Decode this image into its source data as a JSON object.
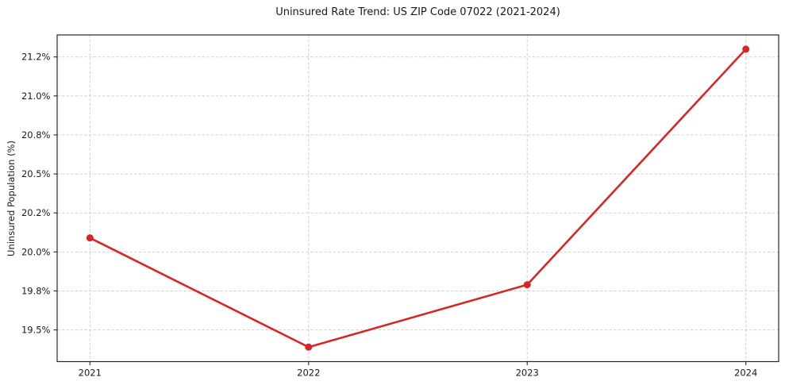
{
  "chart_data": {
    "type": "line",
    "title": "Uninsured Rate Trend: US ZIP Code 07022 (2021-2024)",
    "xlabel": "",
    "ylabel": "Uninsured Population (%)",
    "x": [
      2021,
      2022,
      2023,
      2024
    ],
    "series": [
      {
        "name": "Uninsured rate",
        "values": [
          20.09,
          19.39,
          19.79,
          21.3
        ]
      }
    ],
    "x_tick_labels": [
      "2021",
      "2022",
      "2023",
      "2024"
    ],
    "y_ticks": [
      19.5,
      19.75,
      20.0,
      20.25,
      20.5,
      20.75,
      21.0,
      21.25
    ],
    "y_tick_labels": [
      "19.5%",
      "19.8%",
      "20.0%",
      "20.2%",
      "20.5%",
      "20.8%",
      "21.0%",
      "21.2%"
    ],
    "xlim": [
      2020.85,
      2024.15
    ],
    "ylim": [
      19.297,
      21.391
    ],
    "grid": true,
    "legend_position": "none",
    "line_color": "#d62728",
    "marker": "o",
    "marker_size": 9,
    "line_width": 2.6
  }
}
